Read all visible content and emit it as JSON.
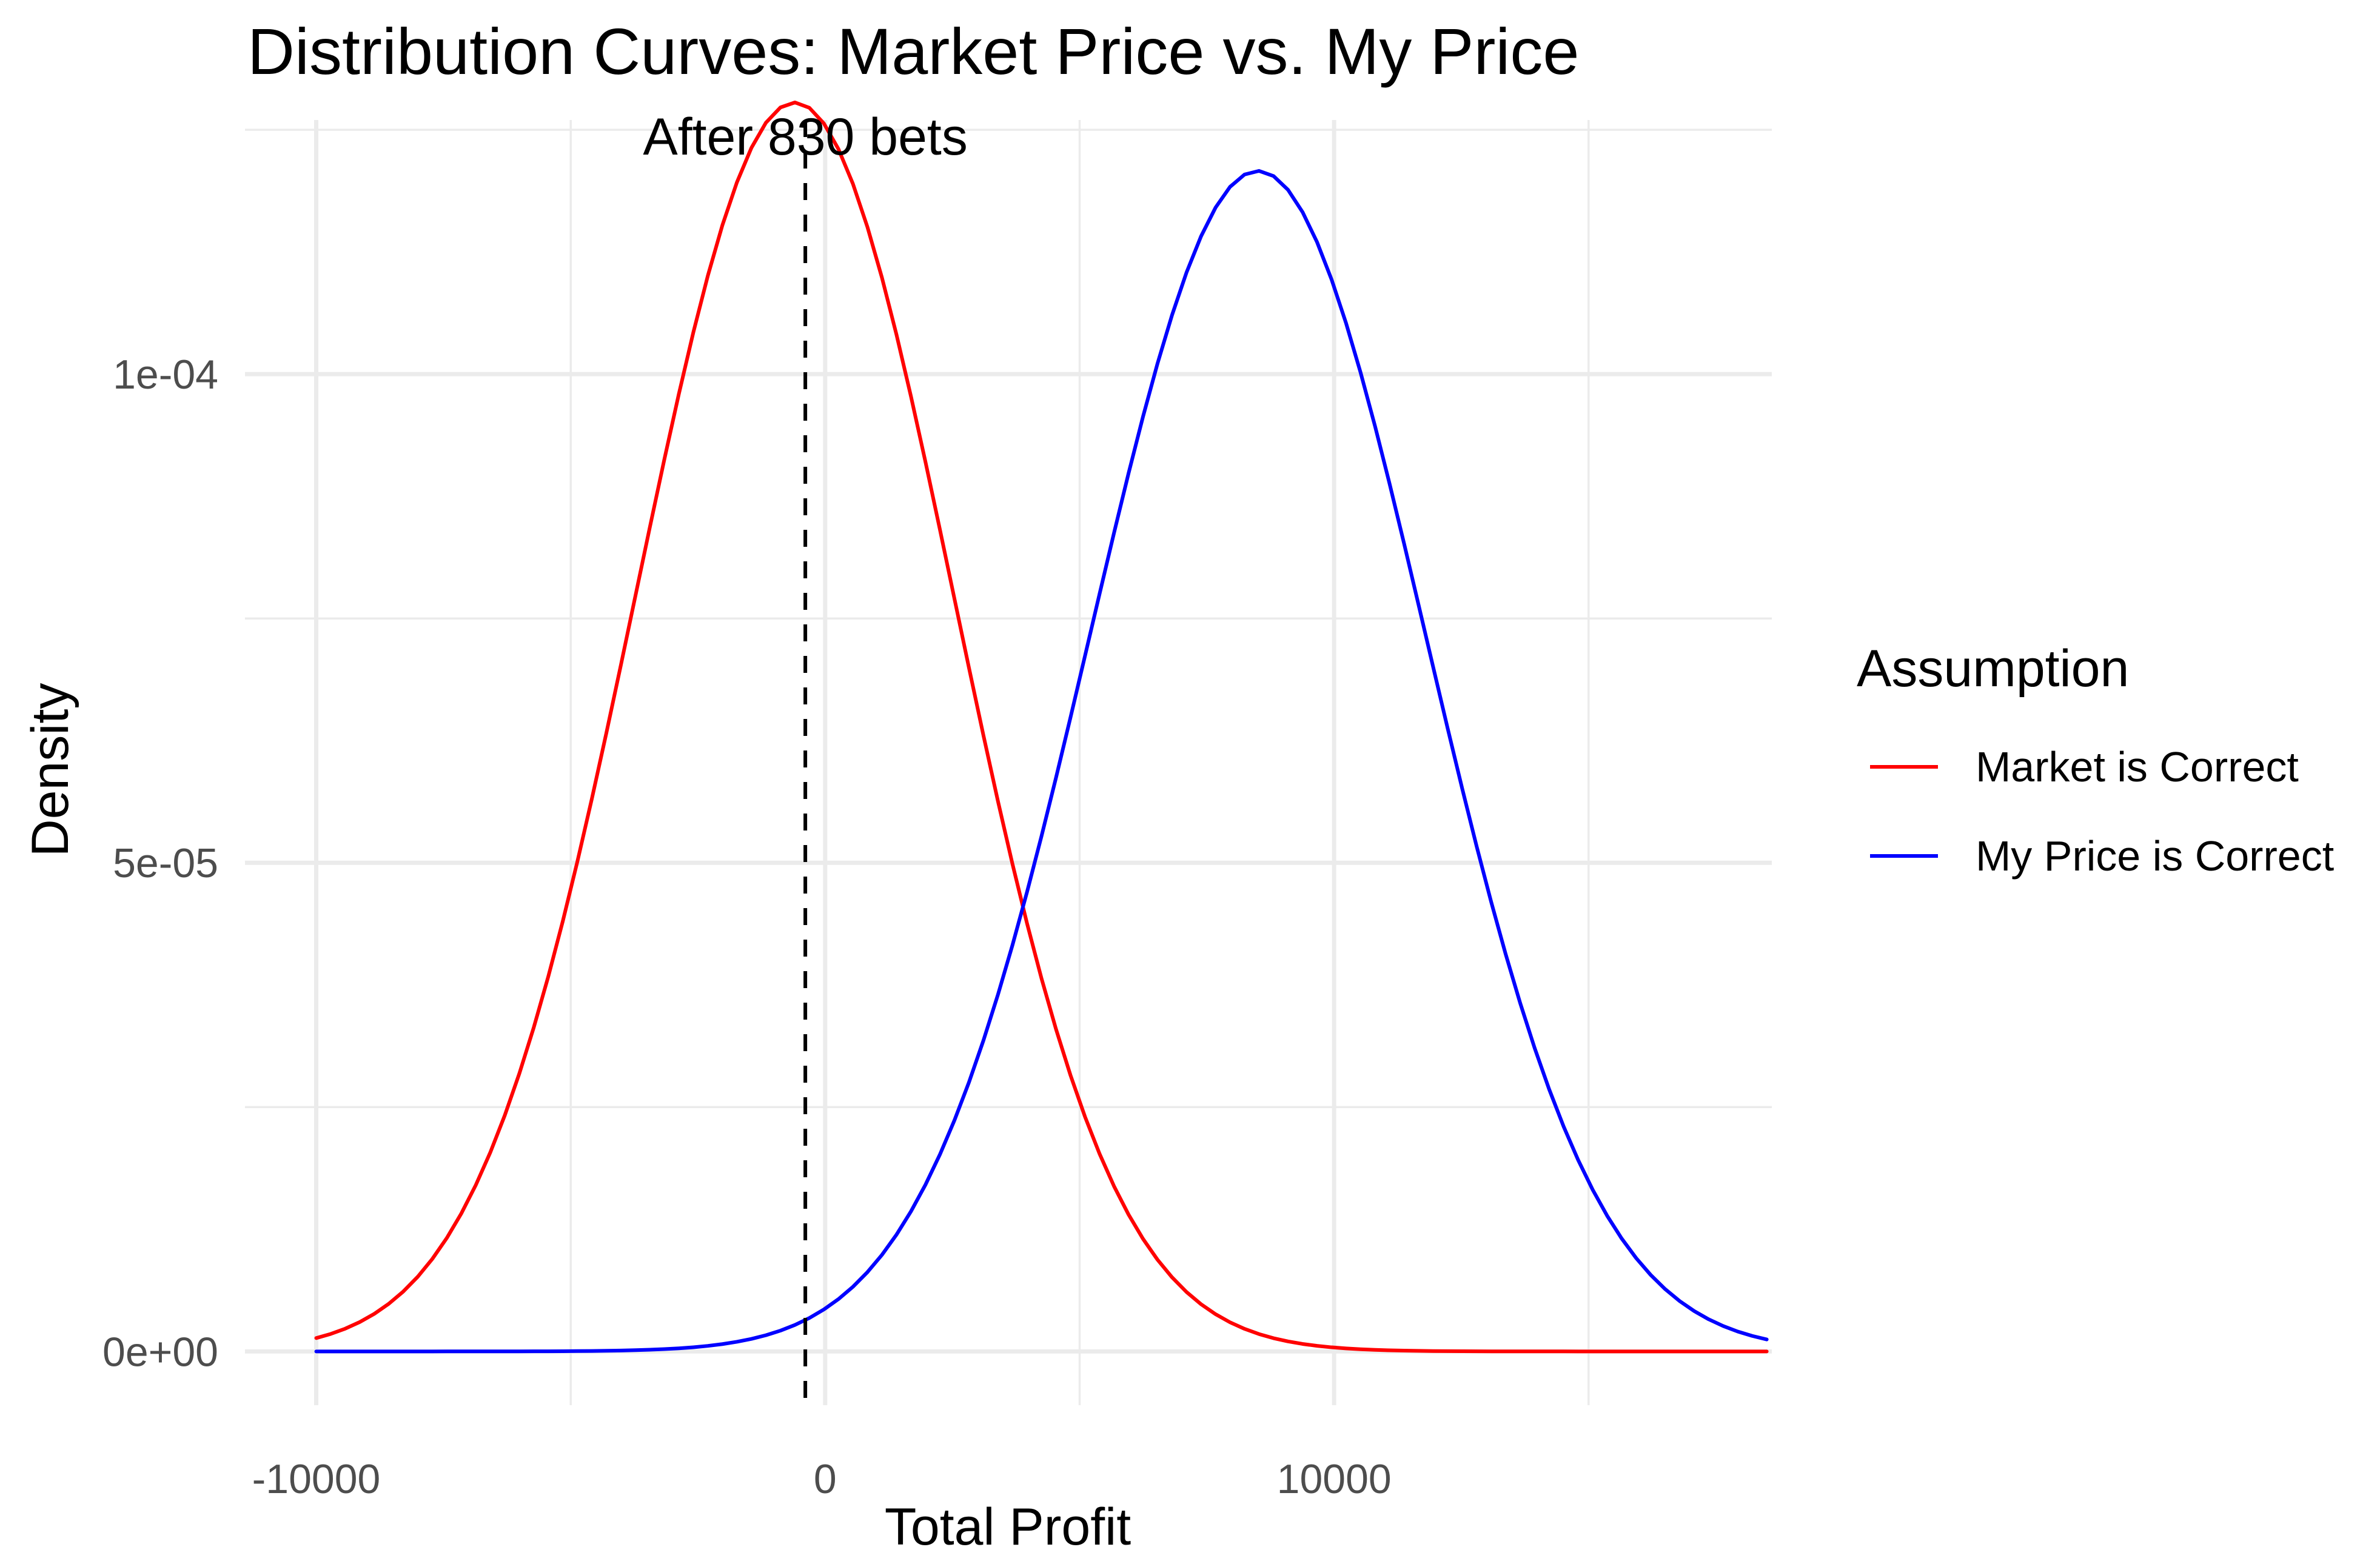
{
  "chart_data": {
    "type": "line",
    "title": "Distribution Curves: Market Price vs. My Price",
    "xlabel": "Total Profit",
    "ylabel": "Density",
    "xlim": [
      -11400,
      18600
    ],
    "ylim": [
      -5.5e-06,
      0.000126
    ],
    "x_ticks": [
      {
        "value": -10000,
        "label": "-10000"
      },
      {
        "value": 0,
        "label": "0"
      },
      {
        "value": 10000,
        "label": "10000"
      }
    ],
    "x_minor": [
      -5000,
      5000,
      15000
    ],
    "y_ticks": [
      {
        "value": 0,
        "label": "0e+00"
      },
      {
        "value": 5e-05,
        "label": "5e-05"
      },
      {
        "value": 0.0001,
        "label": "1e-04"
      }
    ],
    "y_minor": [
      2.5e-05,
      7.5e-05,
      0.000125
    ],
    "grid": true,
    "x_range": [
      -10000,
      18500
    ],
    "n_points": 101,
    "series": [
      {
        "name": "Market is Correct",
        "color": "#ff0000",
        "mean": -600,
        "sd": 3120,
        "peak": 0.0001278
      },
      {
        "name": "My Price is Correct",
        "color": "#0000ff",
        "mean": 8500,
        "sd": 3300,
        "peak": 0.0001208
      }
    ],
    "vline": {
      "x": -390,
      "linetype": "dashed",
      "color": "#000000"
    },
    "annotation": {
      "text": "After 830 bets",
      "x": -390
    },
    "legend": {
      "title": "Assumption",
      "position": "right"
    }
  }
}
